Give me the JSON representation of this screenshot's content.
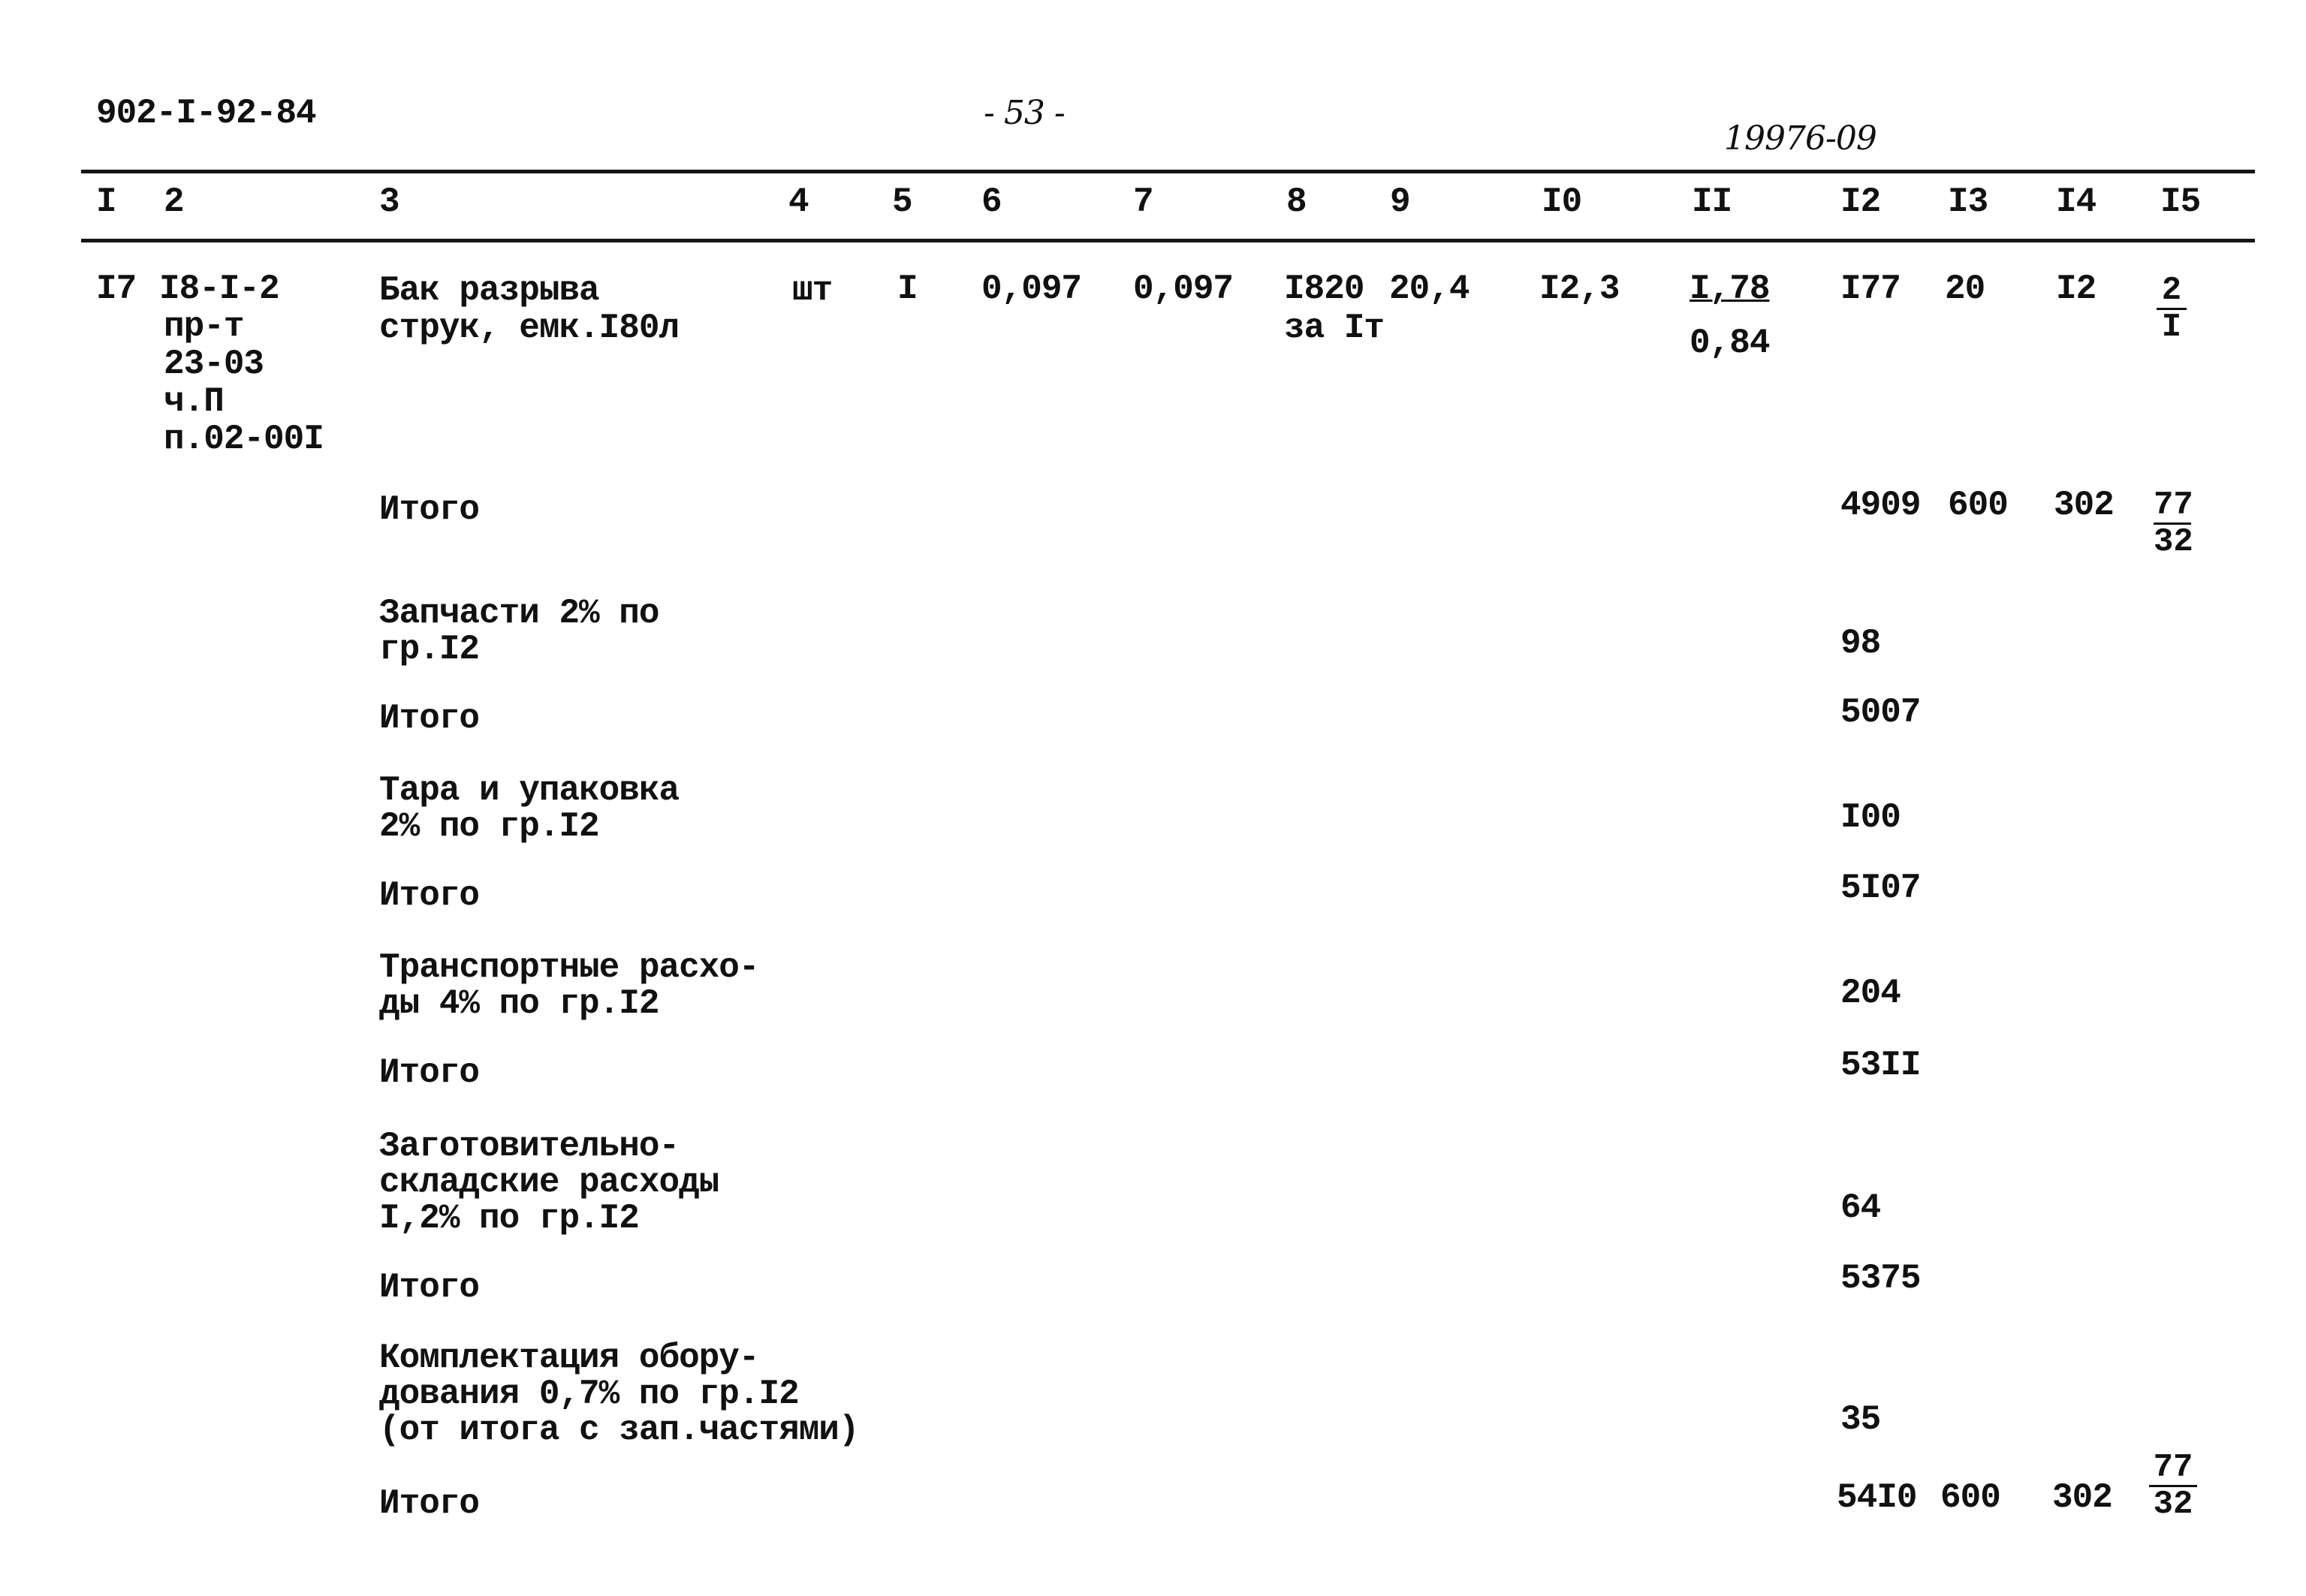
{
  "page": {
    "doc_code": "902-I-92-84",
    "page_number": "- 53 -",
    "inventory_number": "19976-09"
  },
  "columns": [
    "I",
    "2",
    "3",
    "4",
    "5",
    "6",
    "7",
    "8",
    "9",
    "I0",
    "II",
    "I2",
    "I3",
    "I4",
    "I5"
  ],
  "item": {
    "num": "I7",
    "code": [
      "I8-I-2",
      "пр-т",
      "23-03",
      "ч.П",
      "п.02-00I"
    ],
    "name": [
      "Бак разрыва",
      "струк, емк.I80л"
    ],
    "unit": "шт",
    "qty": "I",
    "c6": "0,097",
    "c7": "0,097",
    "c8": "I820",
    "c8_note": "за Iт",
    "c9": "20,4",
    "c10": "I2,3",
    "c11_top": "I,78",
    "c11_bottom": "0,84",
    "c12": "I77",
    "c13": "20",
    "c14": "I2",
    "c15_top": "2",
    "c15_bottom": "I"
  },
  "summary": [
    {
      "label": [
        "Итого"
      ],
      "c12": "4909",
      "c13": "600",
      "c14": "302",
      "c15_top": "77",
      "c15_bottom": "32"
    },
    {
      "label": [
        "Запчасти 2% по",
        "гр.I2"
      ],
      "c12": "98"
    },
    {
      "label": [
        "Итого"
      ],
      "c12": "5007"
    },
    {
      "label": [
        "Тара и упаковка",
        "2% по гр.I2"
      ],
      "c12": "I00"
    },
    {
      "label": [
        "Итого"
      ],
      "c12": "5I07"
    },
    {
      "label": [
        "Транспортные расхо-",
        "ды 4% по гр.I2"
      ],
      "c12": "204"
    },
    {
      "label": [
        "Итого"
      ],
      "c12": "53II"
    },
    {
      "label": [
        "Заготовительно-",
        "складские расходы",
        "I,2% по гр.I2"
      ],
      "c12": "64"
    },
    {
      "label": [
        "Итого"
      ],
      "c12": "5375"
    },
    {
      "label": [
        "Комплектация обору-",
        "дования 0,7% по гр.I2",
        "(от итога с зап.частями)"
      ],
      "c12": "35"
    },
    {
      "label": [
        "Итого"
      ],
      "c12": "54I0",
      "c13": "600",
      "c14": "302",
      "c15_top": "77",
      "c15_bottom": "32"
    }
  ]
}
